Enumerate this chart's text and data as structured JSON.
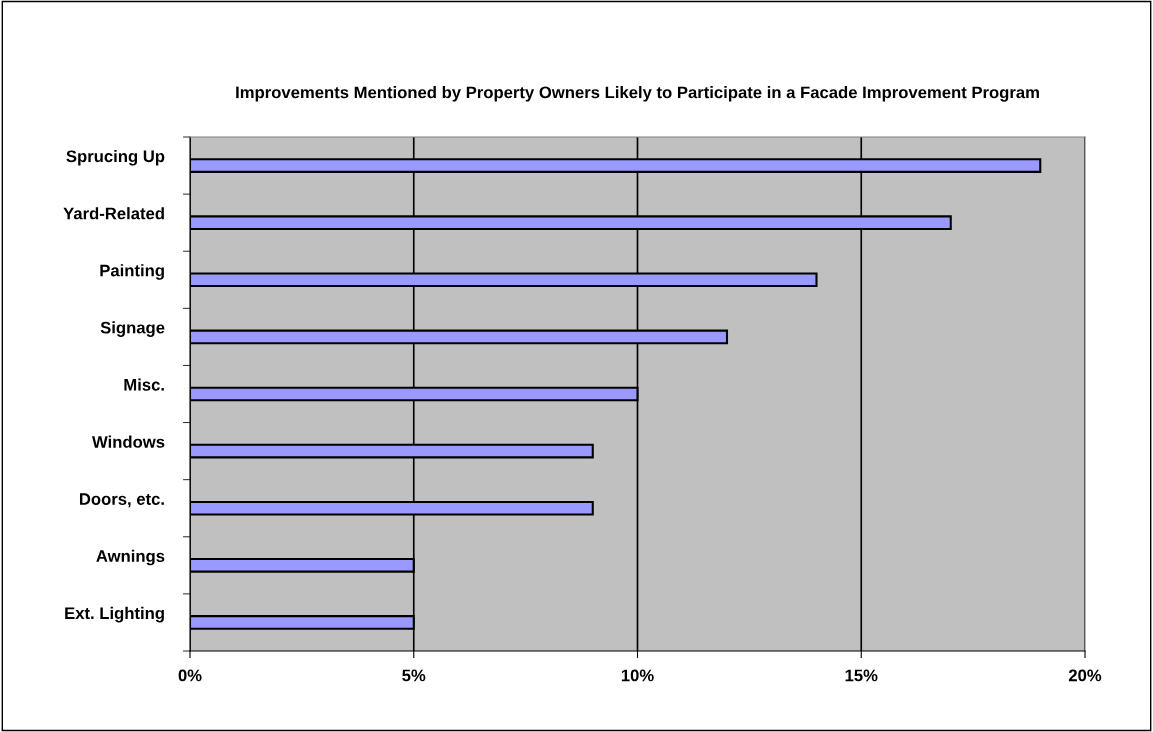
{
  "chart_data": {
    "type": "bar",
    "orientation": "horizontal",
    "title": "Improvements Mentioned by Property Owners Likely to Participate in a Facade Improvement Program",
    "categories": [
      "Sprucing Up",
      "Yard-Related",
      "Painting",
      "Signage",
      "Misc.",
      "Windows",
      "Doors, etc.",
      "Awnings",
      "Ext. Lighting"
    ],
    "values": [
      19,
      17,
      14,
      12,
      10,
      9,
      9,
      5,
      5
    ],
    "color": "#9999ff",
    "xlim": [
      0,
      20
    ],
    "xticks": [
      {
        "value": 0,
        "label": "0%"
      },
      {
        "value": 5,
        "label": "5%"
      },
      {
        "value": 10,
        "label": "10%"
      },
      {
        "value": 15,
        "label": "15%"
      },
      {
        "value": 20,
        "label": "20%"
      }
    ],
    "grid": "x",
    "legend": false
  }
}
